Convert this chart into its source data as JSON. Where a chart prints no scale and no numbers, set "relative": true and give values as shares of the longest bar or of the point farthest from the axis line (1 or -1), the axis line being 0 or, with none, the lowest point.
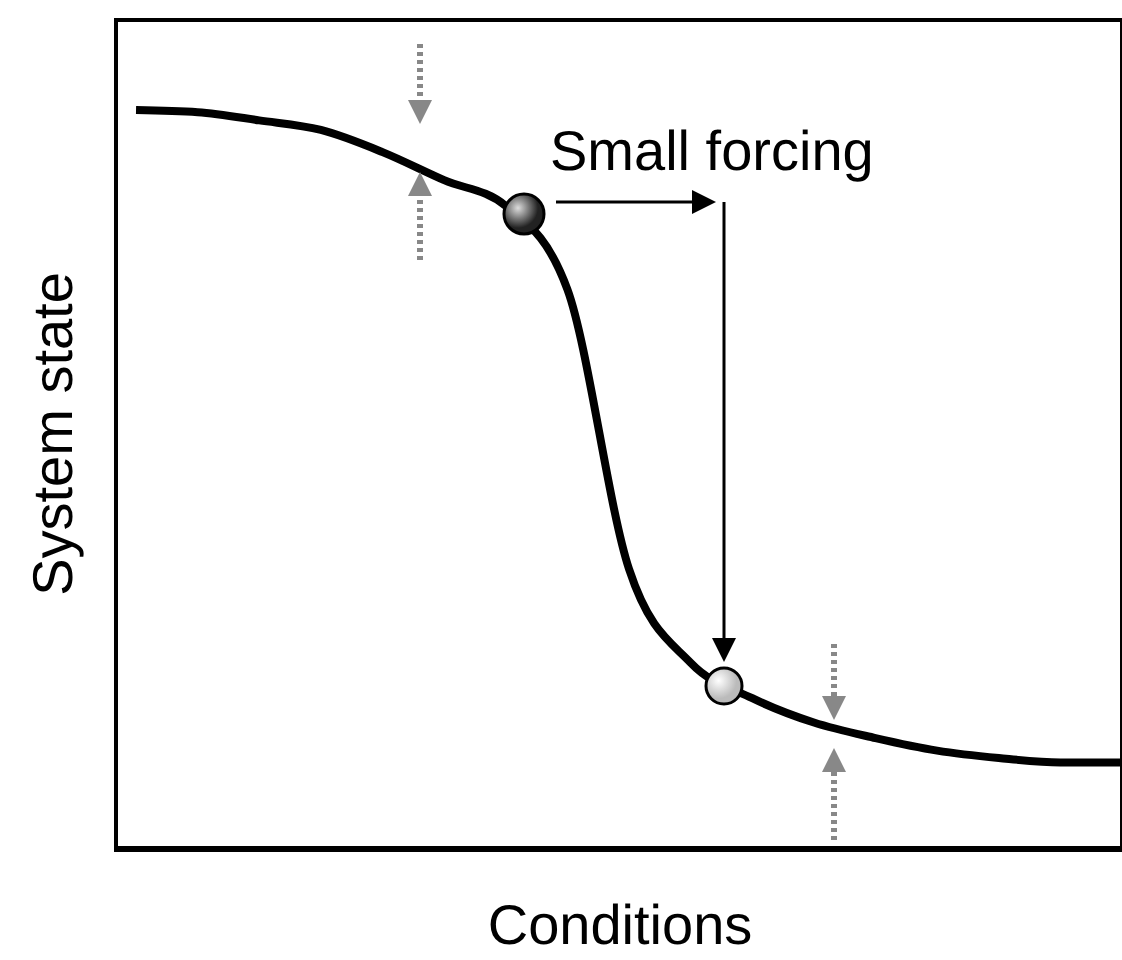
{
  "chart_data": {
    "type": "line",
    "relative": true,
    "xlabel": "Conditions",
    "ylabel": "System state",
    "annotations": [
      "Small forcing"
    ],
    "categories": [
      null,
      null,
      null,
      null,
      null,
      null,
      null,
      null,
      null,
      null,
      null,
      null,
      null,
      null,
      null,
      null,
      null
    ],
    "series": [
      {
        "color": "#000000",
        "values": [
          1,
          0.997,
          0.986,
          0.973,
          0.943,
          0.905,
          0.87,
          0.757,
          0.378,
          0.251,
          0.203,
          0.17,
          0.149,
          0.132,
          0.122,
          0.116,
          0.116
        ]
      }
    ],
    "marker": "none",
    "grid": false,
    "legend": false
  }
}
